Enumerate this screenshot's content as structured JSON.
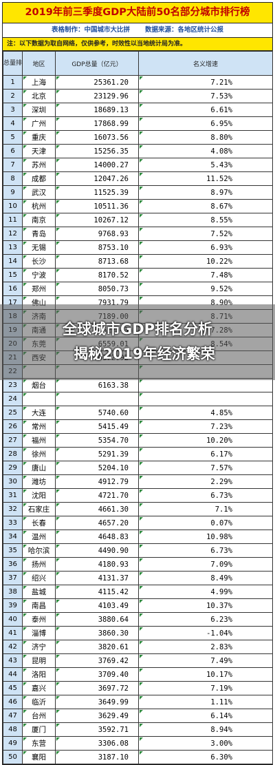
{
  "title": "2019年前三季度GDP大陆前50名部分城市排行榜",
  "meta": {
    "producer": "表格制作：中国城市大比拼",
    "source": "数据来源：各地区统计公报"
  },
  "note": "注：以下数据为取自网络，仅供参考，时效性以当地统计局为准。",
  "table": {
    "headers": {
      "rank": "总量排名",
      "region": "地区",
      "gdp": "GDP总量（亿元）",
      "growth": "名义增速"
    },
    "rows": [
      {
        "rank": "1",
        "city": "上海",
        "gdp": "25361.20",
        "growth": "7.21%"
      },
      {
        "rank": "2",
        "city": "北京",
        "gdp": "23129.96",
        "growth": "7.53%"
      },
      {
        "rank": "3",
        "city": "深圳",
        "gdp": "18689.13",
        "growth": "6.61%"
      },
      {
        "rank": "4",
        "city": "广州",
        "gdp": "17868.99",
        "growth": "6.95%"
      },
      {
        "rank": "5",
        "city": "重庆",
        "gdp": "16073.56",
        "growth": "8.80%"
      },
      {
        "rank": "6",
        "city": "天津",
        "gdp": "15256.35",
        "growth": "4.08%"
      },
      {
        "rank": "7",
        "city": "苏州",
        "gdp": "14000.27",
        "growth": "5.43%"
      },
      {
        "rank": "8",
        "city": "成都",
        "gdp": "12047.26",
        "growth": "11.52%"
      },
      {
        "rank": "9",
        "city": "武汉",
        "gdp": "11525.39",
        "growth": "8.97%"
      },
      {
        "rank": "10",
        "city": "杭州",
        "gdp": "10511.36",
        "growth": "8.67%"
      },
      {
        "rank": "11",
        "city": "南京",
        "gdp": "10267.12",
        "growth": "8.55%"
      },
      {
        "rank": "12",
        "city": "青岛",
        "gdp": "9768.93",
        "growth": "7.52%"
      },
      {
        "rank": "13",
        "city": "无锡",
        "gdp": "8753.10",
        "growth": "6.93%"
      },
      {
        "rank": "14",
        "city": "长沙",
        "gdp": "8713.68",
        "growth": "10.22%"
      },
      {
        "rank": "15",
        "city": "宁波",
        "gdp": "8170.52",
        "growth": "7.48%"
      },
      {
        "rank": "16",
        "city": "郑州",
        "gdp": "8050.73",
        "growth": "9.52%"
      },
      {
        "rank": "17",
        "city": "佛山",
        "gdp": "7931.79",
        "growth": "8.90%"
      },
      {
        "rank": "18",
        "city": "济南",
        "gdp": "7189.00",
        "growth": "8.71%"
      },
      {
        "rank": "19",
        "city": "南通",
        "gdp": "6622.43",
        "growth": "7.28%"
      },
      {
        "rank": "20",
        "city": "东莞",
        "gdp": "6559.01",
        "growth": "8.54%"
      },
      {
        "rank": "21",
        "city": "西安",
        "gdp": "6372.92",
        "growth": ""
      },
      {
        "rank": "22",
        "city": "",
        "gdp": "",
        "growth": ""
      },
      {
        "rank": "23",
        "city": "烟台",
        "gdp": "6163.38",
        "growth": ""
      },
      {
        "rank": "24",
        "city": "",
        "gdp": "",
        "growth": ""
      },
      {
        "rank": "25",
        "city": "大连",
        "gdp": "5740.60",
        "growth": "4.85%"
      },
      {
        "rank": "26",
        "city": "常州",
        "gdp": "5415.49",
        "growth": "7.23%"
      },
      {
        "rank": "27",
        "city": "福州",
        "gdp": "5354.70",
        "growth": "10.20%"
      },
      {
        "rank": "28",
        "city": "徐州",
        "gdp": "5291.39",
        "growth": "6.17%"
      },
      {
        "rank": "29",
        "city": "唐山",
        "gdp": "5204.10",
        "growth": "7.57%"
      },
      {
        "rank": "30",
        "city": "潍坊",
        "gdp": "4912.79",
        "growth": "2.29%"
      },
      {
        "rank": "31",
        "city": "沈阳",
        "gdp": "4721.70",
        "growth": "6.73%"
      },
      {
        "rank": "32",
        "city": "石家庄",
        "gdp": "4661.30",
        "growth": "7.1%"
      },
      {
        "rank": "33",
        "city": "长春",
        "gdp": "4657.20",
        "growth": "0.07%"
      },
      {
        "rank": "34",
        "city": "温州",
        "gdp": "4648.83",
        "growth": "10.98%"
      },
      {
        "rank": "35",
        "city": "哈尔滨",
        "gdp": "4490.90",
        "growth": "6.73%"
      },
      {
        "rank": "36",
        "city": "扬州",
        "gdp": "4180.93",
        "growth": "7.09%"
      },
      {
        "rank": "37",
        "city": "绍兴",
        "gdp": "4131.37",
        "growth": "8.49%"
      },
      {
        "rank": "38",
        "city": "盐城",
        "gdp": "4115.42",
        "growth": "4.99%"
      },
      {
        "rank": "39",
        "city": "南昌",
        "gdp": "4103.49",
        "growth": "10.37%"
      },
      {
        "rank": "40",
        "city": "泰州",
        "gdp": "3880.64",
        "growth": "6.23%"
      },
      {
        "rank": "41",
        "city": "淄博",
        "gdp": "3860.30",
        "growth": "-1.04%"
      },
      {
        "rank": "42",
        "city": "济宁",
        "gdp": "3820.61",
        "growth": "2.83%"
      },
      {
        "rank": "43",
        "city": "昆明",
        "gdp": "3769.42",
        "growth": "7.49%"
      },
      {
        "rank": "44",
        "city": "洛阳",
        "gdp": "3709.40",
        "growth": "10.17%"
      },
      {
        "rank": "45",
        "city": "嘉兴",
        "gdp": "3697.72",
        "growth": "7.19%"
      },
      {
        "rank": "46",
        "city": "临沂",
        "gdp": "3649.99",
        "growth": "1.11%"
      },
      {
        "rank": "47",
        "city": "台州",
        "gdp": "3629.49",
        "growth": "6.14%"
      },
      {
        "rank": "48",
        "city": "厦门",
        "gdp": "3592.71",
        "growth": "8.94%"
      },
      {
        "rank": "49",
        "city": "东营",
        "gdp": "3306.08",
        "growth": "3.00%"
      },
      {
        "rank": "50",
        "city": "襄阳",
        "gdp": "3187.10",
        "growth": "6.30%"
      }
    ]
  },
  "overlay": {
    "line1": "全球城市GDP排名分析",
    "line2": "揭秘2019年经济繁荣"
  },
  "colors": {
    "title_bg": "#ffe600",
    "title_text": "#c00000",
    "meta_text": "#1f4e9e",
    "header_bg": "#cfe3f5",
    "marker": "#2e8b3e"
  }
}
